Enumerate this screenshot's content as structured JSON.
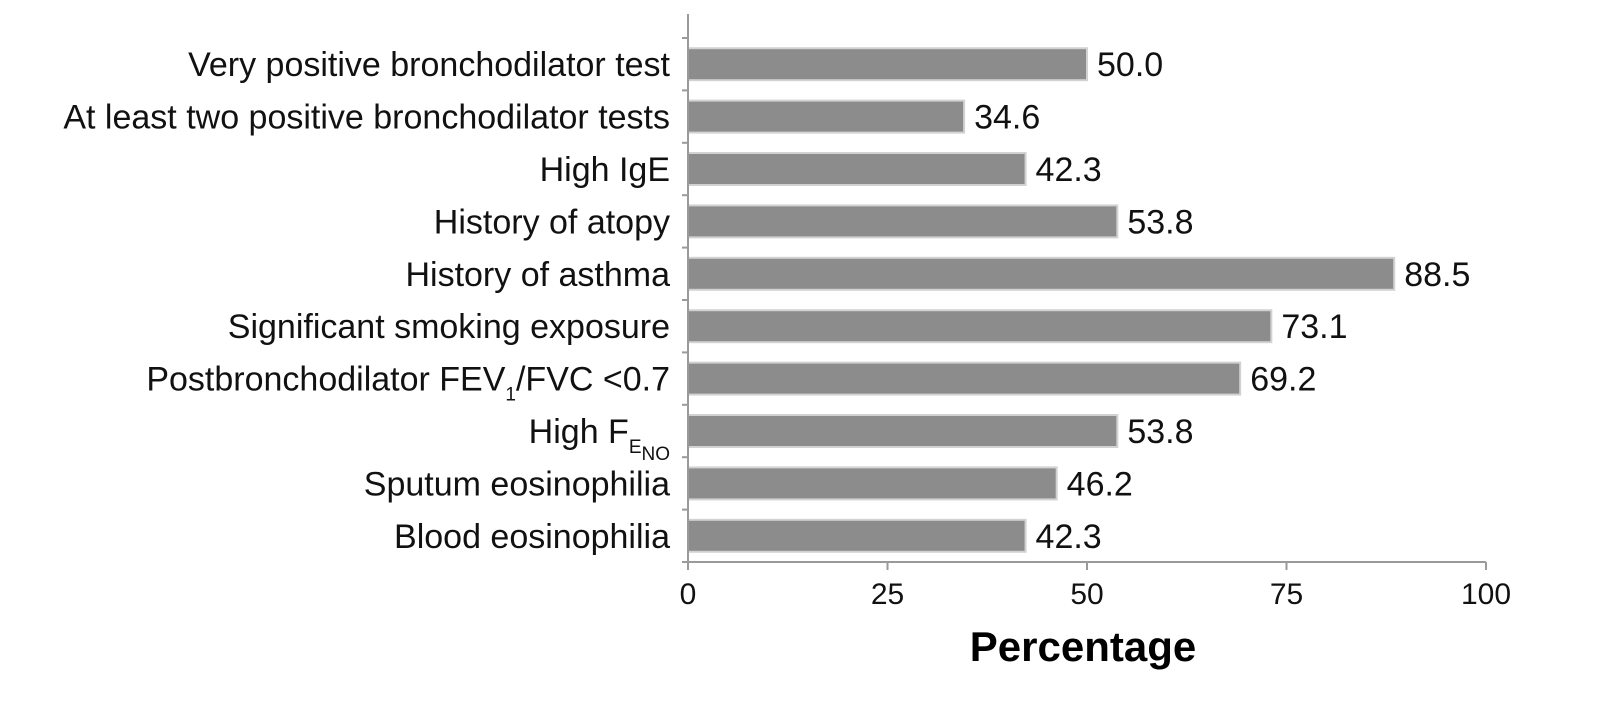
{
  "chart_data": {
    "type": "bar",
    "orientation": "horizontal",
    "categories": [
      {
        "text": "Very positive bronchodilator test"
      },
      {
        "text": "At least two positive bronchodilator tests"
      },
      {
        "text": "High IgE"
      },
      {
        "text": "History of atopy"
      },
      {
        "text": "History of asthma"
      },
      {
        "text": "Significant smoking exposure"
      },
      {
        "text": "Postbronchodilator FEV",
        "sub": "1",
        "tail": "/FVC <0.7"
      },
      {
        "text": "High F",
        "sub": "E",
        "sub2": "NO"
      },
      {
        "text": "Sputum eosinophilia"
      },
      {
        "text": "Blood eosinophilia"
      }
    ],
    "values": [
      50.0,
      34.6,
      42.3,
      53.8,
      88.5,
      73.1,
      69.2,
      53.8,
      46.2,
      42.3
    ],
    "value_labels": [
      "50.0",
      "34.6",
      "42.3",
      "53.8",
      "88.5",
      "73.1",
      "69.2",
      "53.8",
      "46.2",
      "42.3"
    ],
    "xlabel": "Percentage",
    "xlim": [
      0,
      100
    ],
    "xticks": [
      "0",
      "25",
      "50",
      "75",
      "100"
    ],
    "grid": false,
    "bar_color": "#8c8c8c",
    "bar_border_color": "#d2d2d2"
  }
}
